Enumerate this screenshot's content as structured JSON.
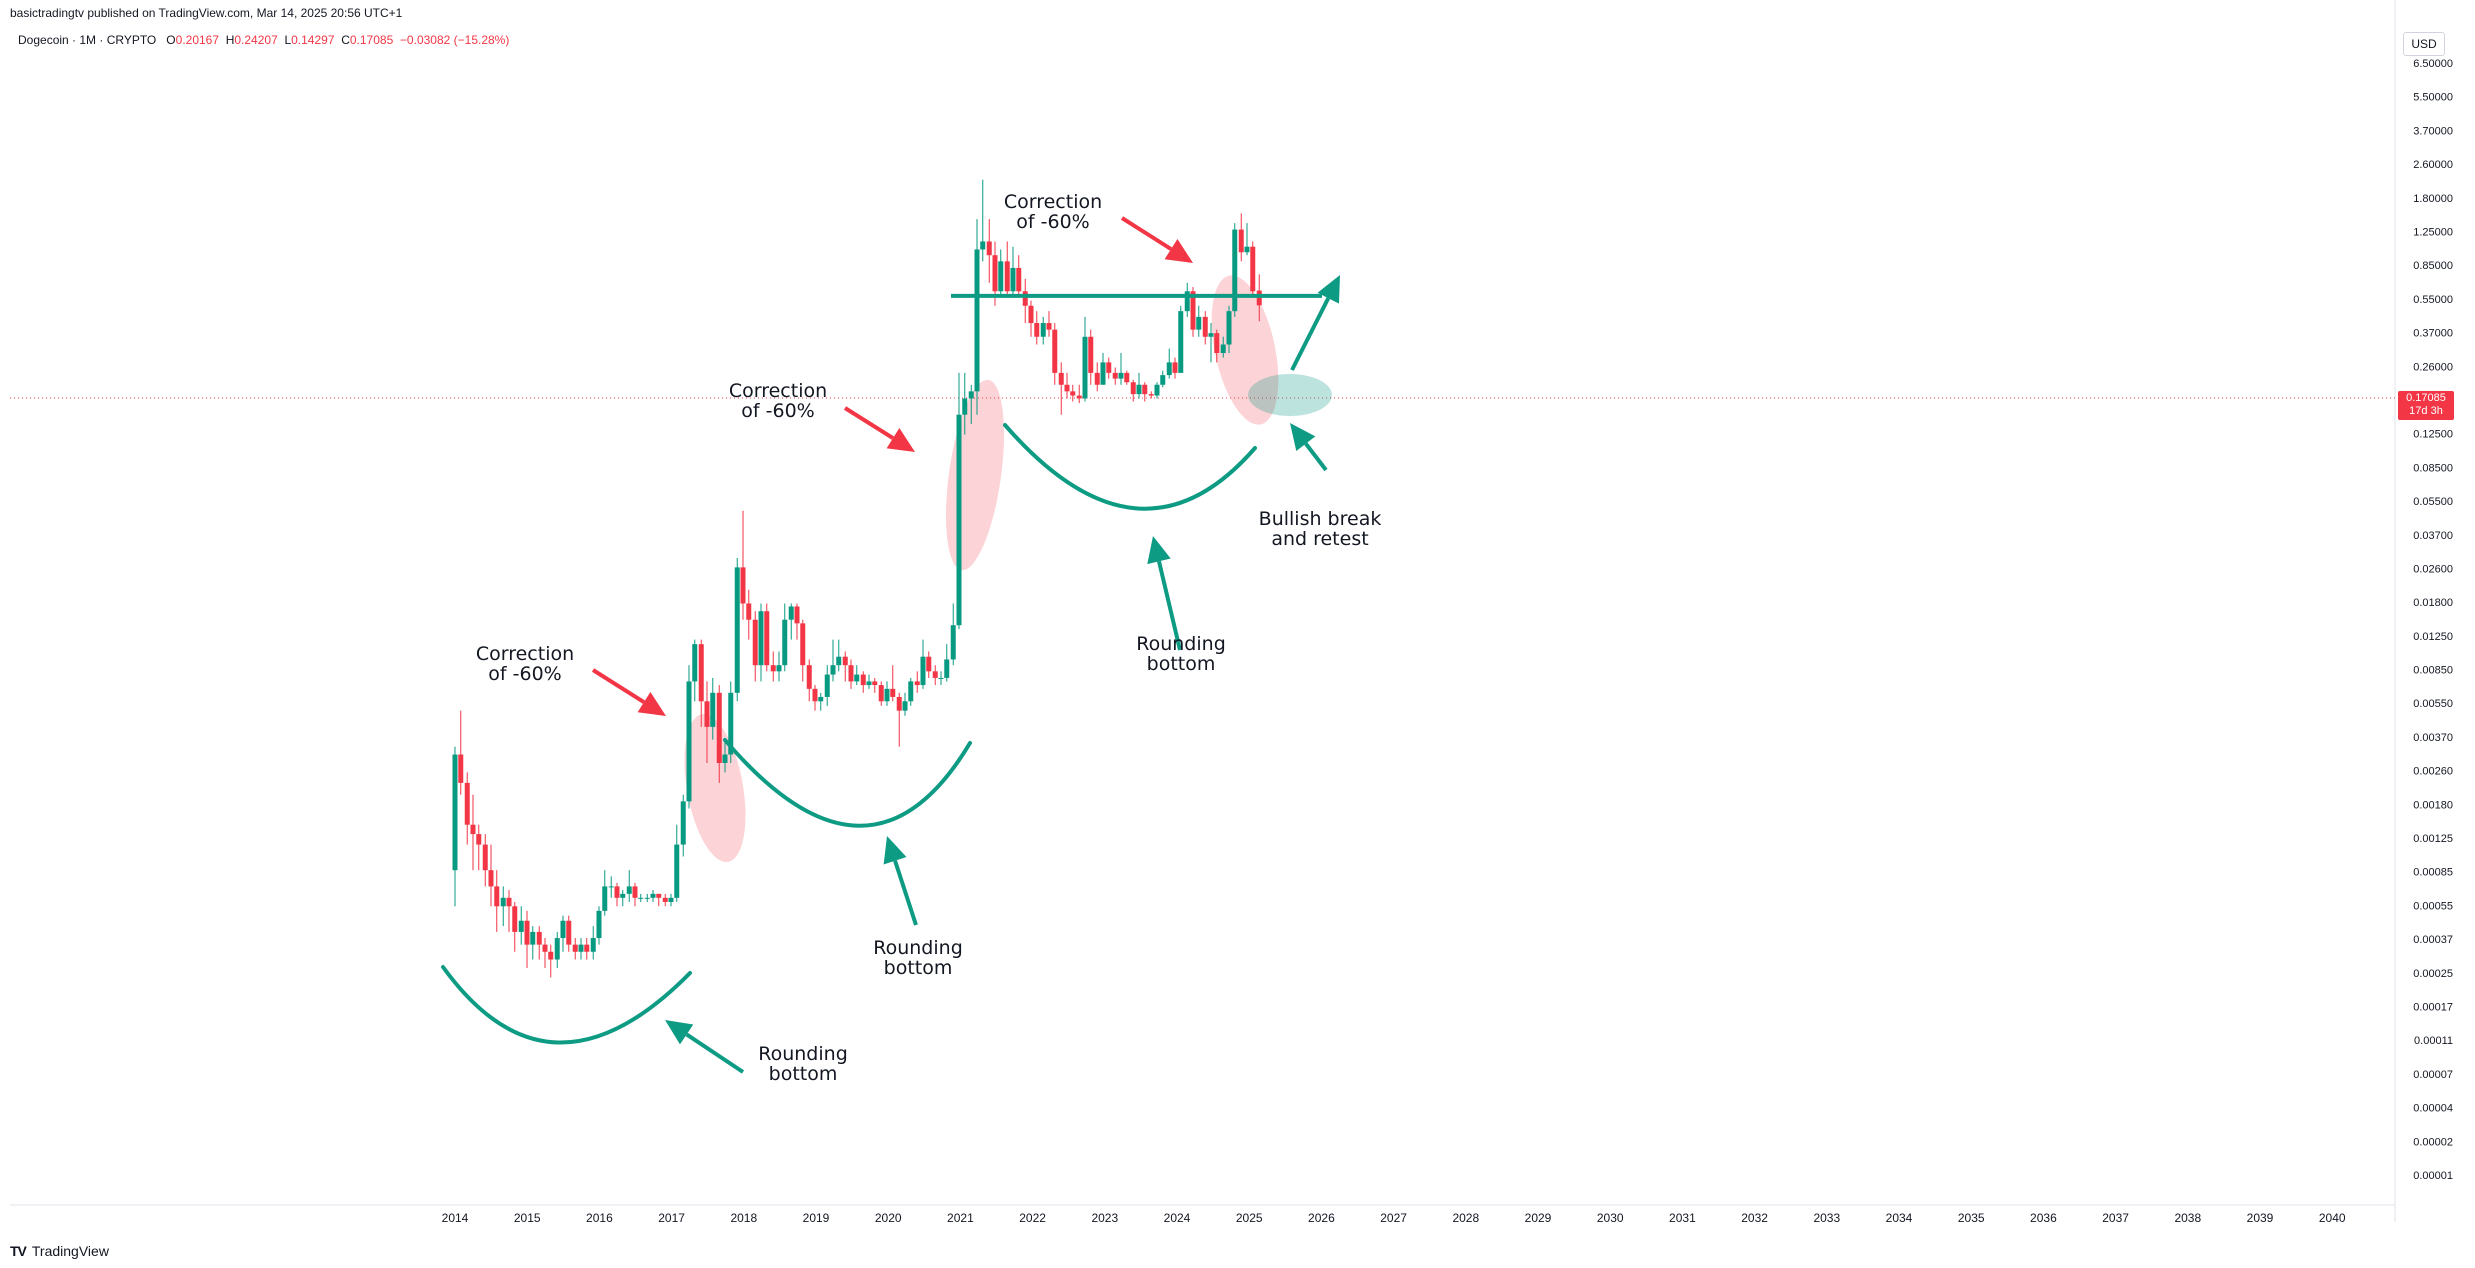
{
  "header": {
    "published": "basictradingtv published on TradingView.com, Mar 14, 2025 20:56 UTC+1",
    "symbol": "Dogecoin · 1M · CRYPTO",
    "o_label": "O",
    "o_value": "0.20167",
    "h_label": "H",
    "h_value": "0.24207",
    "l_label": "L",
    "l_value": "0.14297",
    "c_label": "C",
    "c_value": "0.17085",
    "change": "−0.03082 (−15.28%)"
  },
  "currency_button": "USD",
  "last_price": {
    "value": "0.17085",
    "countdown": "17d 3h"
  },
  "footer": {
    "logo": "TV",
    "brand": "TradingView"
  },
  "colors": {
    "up": "#089981",
    "down": "#f23645",
    "annotation": "#0e9b84",
    "correction_fill": "#f23645"
  },
  "annotations": [
    {
      "id": "correction-1",
      "text": [
        "Correction",
        "of -60%"
      ]
    },
    {
      "id": "correction-2",
      "text": [
        "Correction",
        "of -60%"
      ]
    },
    {
      "id": "correction-3",
      "text": [
        "Correction",
        "of -60%"
      ]
    },
    {
      "id": "rounding-1",
      "text": [
        "Rounding",
        "bottom"
      ]
    },
    {
      "id": "rounding-2",
      "text": [
        "Rounding",
        "bottom"
      ]
    },
    {
      "id": "rounding-3",
      "text": [
        "Rounding",
        "bottom"
      ]
    },
    {
      "id": "bullish",
      "text": [
        "Bullish break",
        "and retest"
      ]
    }
  ],
  "chart_data": {
    "type": "candlestick",
    "scale": "log",
    "price_ticks": [
      "6.50000",
      "5.50000",
      "3.70000",
      "2.60000",
      "1.80000",
      "1.25000",
      "0.85000",
      "0.55000",
      "0.37000",
      "0.26000",
      "0.17085",
      "0.12500",
      "0.08500",
      "0.05500",
      "0.03700",
      "0.02600",
      "0.01800",
      "0.01250",
      "0.00850",
      "0.00550",
      "0.00370",
      "0.00260",
      "0.00180",
      "0.00125",
      "0.00085",
      "0.00055",
      "0.00037",
      "0.00025",
      "0.00017",
      "0.00011",
      "0.00007",
      "0.00004",
      "0.00002",
      "0.00001"
    ],
    "x_ticks": [
      "2014",
      "2015",
      "2016",
      "2017",
      "2018",
      "2019",
      "2020",
      "2021",
      "2022",
      "2023",
      "2024",
      "2025",
      "2026",
      "2027",
      "2028",
      "2029",
      "2030",
      "2031",
      "2032",
      "2033",
      "2034",
      "2035",
      "2036",
      "2037",
      "2038",
      "2039",
      "2040"
    ],
    "horizontal_level": 0.19,
    "candles": [
      [
        2014.0,
        0.0003,
        0.0011,
        0.0012,
        0.0002
      ],
      [
        2014.08,
        0.0011,
        0.0008,
        0.0018,
        0.0007
      ],
      [
        2014.17,
        0.0008,
        0.0005,
        0.0009,
        0.0004
      ],
      [
        2014.25,
        0.0005,
        0.00045,
        0.0007,
        0.0003
      ],
      [
        2014.33,
        0.00045,
        0.0004,
        0.0005,
        0.0003
      ],
      [
        2014.42,
        0.0004,
        0.0003,
        0.00045,
        0.00025
      ],
      [
        2014.5,
        0.0003,
        0.00025,
        0.0004,
        0.0002
      ],
      [
        2014.58,
        0.00025,
        0.0002,
        0.0003,
        0.00015
      ],
      [
        2014.67,
        0.0002,
        0.00022,
        0.00025,
        0.00016
      ],
      [
        2014.75,
        0.00022,
        0.0002,
        0.00024,
        0.00015
      ],
      [
        2014.83,
        0.0002,
        0.00015,
        0.00021,
        0.00012
      ],
      [
        2014.92,
        0.00015,
        0.00017,
        0.0002,
        0.00013
      ],
      [
        2015.0,
        0.00017,
        0.00013,
        0.00019,
        0.0001
      ],
      [
        2015.08,
        0.00013,
        0.00015,
        0.00016,
        0.00011
      ],
      [
        2015.17,
        0.00015,
        0.00013,
        0.00016,
        0.00011
      ],
      [
        2015.25,
        0.00013,
        0.00012,
        0.00014,
        0.0001
      ],
      [
        2015.33,
        0.00012,
        0.00011,
        0.00013,
        9e-05
      ],
      [
        2015.42,
        0.00011,
        0.00014,
        0.00015,
        0.0001
      ],
      [
        2015.5,
        0.00014,
        0.00017,
        0.00018,
        0.00012
      ],
      [
        2015.58,
        0.00017,
        0.00013,
        0.00018,
        0.00012
      ],
      [
        2015.67,
        0.00013,
        0.00012,
        0.00014,
        0.00011
      ],
      [
        2015.75,
        0.00012,
        0.00013,
        0.00014,
        0.00011
      ],
      [
        2015.83,
        0.00013,
        0.00012,
        0.00014,
        0.00011
      ],
      [
        2015.92,
        0.00012,
        0.00014,
        0.00016,
        0.00011
      ],
      [
        2016.0,
        0.00014,
        0.00019,
        0.0002,
        0.00013
      ],
      [
        2016.08,
        0.00019,
        0.00025,
        0.0003,
        0.00018
      ],
      [
        2016.17,
        0.00025,
        0.00025,
        0.00028,
        0.00022
      ],
      [
        2016.25,
        0.00025,
        0.00022,
        0.00026,
        0.0002
      ],
      [
        2016.33,
        0.00022,
        0.00023,
        0.00024,
        0.0002
      ],
      [
        2016.42,
        0.00023,
        0.00025,
        0.0003,
        0.00021
      ],
      [
        2016.5,
        0.00025,
        0.00022,
        0.00026,
        0.0002
      ],
      [
        2016.58,
        0.00022,
        0.00022,
        0.00023,
        0.00021
      ],
      [
        2016.67,
        0.00022,
        0.00022,
        0.00023,
        0.00021
      ],
      [
        2016.75,
        0.00022,
        0.00023,
        0.00024,
        0.00021
      ],
      [
        2016.83,
        0.00023,
        0.00022,
        0.00023,
        0.0002
      ],
      [
        2016.92,
        0.00022,
        0.00021,
        0.00023,
        0.0002
      ],
      [
        2017.0,
        0.00021,
        0.00022,
        0.00023,
        0.0002
      ],
      [
        2017.08,
        0.00022,
        0.0004,
        0.0005,
        0.00021
      ],
      [
        2017.17,
        0.0004,
        0.00065,
        0.0007,
        0.00035
      ],
      [
        2017.25,
        0.00065,
        0.0025,
        0.003,
        0.0006
      ],
      [
        2017.33,
        0.0025,
        0.0038,
        0.004,
        0.002
      ],
      [
        2017.42,
        0.0038,
        0.002,
        0.004,
        0.0015
      ],
      [
        2017.5,
        0.002,
        0.0015,
        0.0025,
        0.001
      ],
      [
        2017.58,
        0.0015,
        0.0022,
        0.0026,
        0.0013
      ],
      [
        2017.67,
        0.0022,
        0.001,
        0.0024,
        0.0008
      ],
      [
        2017.75,
        0.001,
        0.0011,
        0.0013,
        0.0009
      ],
      [
        2017.83,
        0.0011,
        0.0022,
        0.0025,
        0.001
      ],
      [
        2017.92,
        0.0022,
        0.009,
        0.01,
        0.002
      ],
      [
        2018.0,
        0.009,
        0.006,
        0.017,
        0.005
      ],
      [
        2018.08,
        0.006,
        0.005,
        0.007,
        0.004
      ],
      [
        2018.17,
        0.005,
        0.003,
        0.0055,
        0.0025
      ],
      [
        2018.25,
        0.003,
        0.0055,
        0.006,
        0.0025
      ],
      [
        2018.33,
        0.0055,
        0.003,
        0.006,
        0.0028
      ],
      [
        2018.42,
        0.003,
        0.0028,
        0.0035,
        0.0025
      ],
      [
        2018.5,
        0.0028,
        0.003,
        0.0035,
        0.0025
      ],
      [
        2018.58,
        0.003,
        0.005,
        0.006,
        0.0028
      ],
      [
        2018.67,
        0.005,
        0.0058,
        0.006,
        0.004
      ],
      [
        2018.75,
        0.0058,
        0.0048,
        0.006,
        0.004
      ],
      [
        2018.83,
        0.0048,
        0.003,
        0.005,
        0.0025
      ],
      [
        2018.92,
        0.003,
        0.0023,
        0.0032,
        0.002
      ],
      [
        2019.0,
        0.0023,
        0.002,
        0.0024,
        0.0018
      ],
      [
        2019.08,
        0.002,
        0.0021,
        0.0022,
        0.0018
      ],
      [
        2019.17,
        0.0021,
        0.0027,
        0.003,
        0.0019
      ],
      [
        2019.25,
        0.0027,
        0.003,
        0.004,
        0.0025
      ],
      [
        2019.33,
        0.003,
        0.0033,
        0.004,
        0.0028
      ],
      [
        2019.42,
        0.0033,
        0.003,
        0.0035,
        0.0025
      ],
      [
        2019.5,
        0.003,
        0.0025,
        0.0032,
        0.0023
      ],
      [
        2019.58,
        0.0025,
        0.0027,
        0.003,
        0.0024
      ],
      [
        2019.67,
        0.0027,
        0.0024,
        0.0028,
        0.0022
      ],
      [
        2019.75,
        0.0024,
        0.0025,
        0.0027,
        0.0023
      ],
      [
        2019.83,
        0.0025,
        0.0024,
        0.0026,
        0.0022
      ],
      [
        2019.92,
        0.0024,
        0.002,
        0.0025,
        0.0019
      ],
      [
        2020.0,
        0.002,
        0.0023,
        0.0025,
        0.0019
      ],
      [
        2020.08,
        0.0023,
        0.0021,
        0.003,
        0.002
      ],
      [
        2020.17,
        0.0021,
        0.0018,
        0.0022,
        0.0012
      ],
      [
        2020.25,
        0.0018,
        0.002,
        0.0022,
        0.0017
      ],
      [
        2020.33,
        0.002,
        0.0025,
        0.0026,
        0.0019
      ],
      [
        2020.42,
        0.0025,
        0.0024,
        0.0028,
        0.0022
      ],
      [
        2020.5,
        0.0024,
        0.0033,
        0.004,
        0.0023
      ],
      [
        2020.58,
        0.0033,
        0.0028,
        0.0035,
        0.0026
      ],
      [
        2020.67,
        0.0028,
        0.0026,
        0.003,
        0.0024
      ],
      [
        2020.75,
        0.0026,
        0.0026,
        0.0028,
        0.0024
      ],
      [
        2020.83,
        0.0026,
        0.0032,
        0.0038,
        0.0025
      ],
      [
        2020.92,
        0.0032,
        0.0047,
        0.006,
        0.003
      ],
      [
        2021.0,
        0.0047,
        0.05,
        0.08,
        0.0045
      ],
      [
        2021.08,
        0.05,
        0.06,
        0.08,
        0.04
      ],
      [
        2021.17,
        0.06,
        0.065,
        0.07,
        0.045
      ],
      [
        2021.25,
        0.065,
        0.32,
        0.45,
        0.05
      ],
      [
        2021.33,
        0.32,
        0.35,
        0.7,
        0.28
      ],
      [
        2021.42,
        0.35,
        0.3,
        0.45,
        0.22
      ],
      [
        2021.5,
        0.3,
        0.2,
        0.35,
        0.17
      ],
      [
        2021.58,
        0.2,
        0.28,
        0.32,
        0.19
      ],
      [
        2021.67,
        0.28,
        0.2,
        0.35,
        0.19
      ],
      [
        2021.75,
        0.2,
        0.26,
        0.33,
        0.19
      ],
      [
        2021.83,
        0.26,
        0.2,
        0.3,
        0.19
      ],
      [
        2021.92,
        0.2,
        0.17,
        0.23,
        0.14
      ],
      [
        2022.0,
        0.17,
        0.14,
        0.18,
        0.12
      ],
      [
        2022.08,
        0.14,
        0.12,
        0.16,
        0.11
      ],
      [
        2022.17,
        0.12,
        0.14,
        0.15,
        0.11
      ],
      [
        2022.25,
        0.14,
        0.13,
        0.16,
        0.12
      ],
      [
        2022.33,
        0.13,
        0.08,
        0.14,
        0.07
      ],
      [
        2022.42,
        0.08,
        0.07,
        0.09,
        0.05
      ],
      [
        2022.5,
        0.07,
        0.065,
        0.08,
        0.06
      ],
      [
        2022.58,
        0.065,
        0.062,
        0.07,
        0.058
      ],
      [
        2022.67,
        0.062,
        0.06,
        0.07,
        0.057
      ],
      [
        2022.75,
        0.06,
        0.12,
        0.15,
        0.058
      ],
      [
        2022.83,
        0.12,
        0.08,
        0.13,
        0.07
      ],
      [
        2022.92,
        0.08,
        0.07,
        0.09,
        0.065
      ],
      [
        2023.0,
        0.07,
        0.09,
        0.1,
        0.07
      ],
      [
        2023.08,
        0.09,
        0.08,
        0.095,
        0.075
      ],
      [
        2023.17,
        0.08,
        0.075,
        0.085,
        0.07
      ],
      [
        2023.25,
        0.075,
        0.08,
        0.1,
        0.07
      ],
      [
        2023.33,
        0.08,
        0.072,
        0.082,
        0.07
      ],
      [
        2023.42,
        0.072,
        0.063,
        0.074,
        0.058
      ],
      [
        2023.5,
        0.063,
        0.07,
        0.08,
        0.06
      ],
      [
        2023.58,
        0.07,
        0.063,
        0.072,
        0.058
      ],
      [
        2023.67,
        0.063,
        0.062,
        0.065,
        0.06
      ],
      [
        2023.75,
        0.062,
        0.07,
        0.072,
        0.06
      ],
      [
        2023.83,
        0.07,
        0.078,
        0.082,
        0.068
      ],
      [
        2023.92,
        0.078,
        0.09,
        0.105,
        0.075
      ],
      [
        2024.0,
        0.09,
        0.08,
        0.095,
        0.075
      ],
      [
        2024.08,
        0.08,
        0.16,
        0.17,
        0.08
      ],
      [
        2024.17,
        0.16,
        0.2,
        0.22,
        0.15
      ],
      [
        2024.25,
        0.2,
        0.13,
        0.21,
        0.12
      ],
      [
        2024.33,
        0.13,
        0.15,
        0.17,
        0.12
      ],
      [
        2024.42,
        0.15,
        0.12,
        0.16,
        0.11
      ],
      [
        2024.5,
        0.12,
        0.125,
        0.14,
        0.09
      ],
      [
        2024.58,
        0.125,
        0.1,
        0.13,
        0.09
      ],
      [
        2024.67,
        0.1,
        0.11,
        0.12,
        0.095
      ],
      [
        2024.75,
        0.11,
        0.16,
        0.17,
        0.1
      ],
      [
        2024.83,
        0.16,
        0.4,
        0.43,
        0.15
      ],
      [
        2024.92,
        0.4,
        0.31,
        0.48,
        0.28
      ],
      [
        2025.0,
        0.31,
        0.33,
        0.43,
        0.3
      ],
      [
        2025.08,
        0.33,
        0.2,
        0.35,
        0.19
      ],
      [
        2025.17,
        0.20167,
        0.17085,
        0.24207,
        0.14297
      ]
    ]
  }
}
